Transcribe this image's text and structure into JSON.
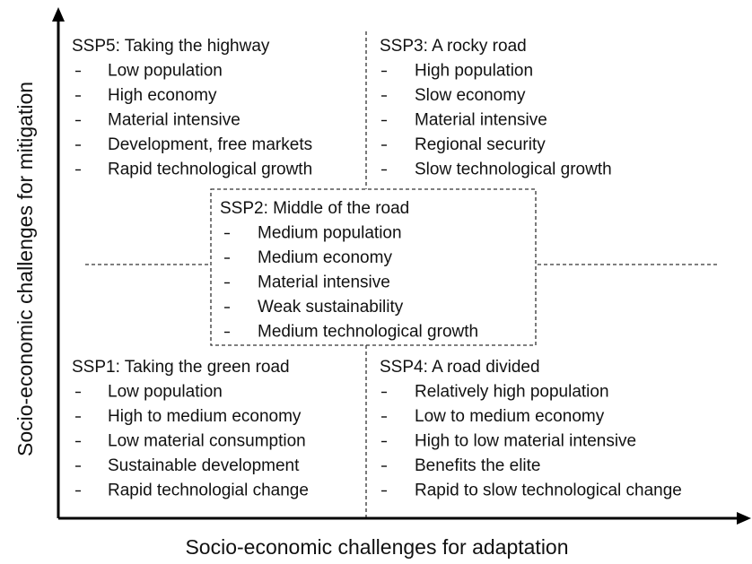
{
  "y_axis_label": "Socio-economic  challenges  for  mitigation",
  "x_axis_label": "Socio-economic  challenges  for  adaptation",
  "quadrants": [
    {
      "title": "SSP5: Taking the highway",
      "items": [
        "Low population",
        "High economy",
        "Material intensive",
        "Development, free markets",
        "Rapid technological growth"
      ]
    },
    {
      "title": "SSP3: A rocky road",
      "items": [
        "High population",
        "Slow economy",
        "Material intensive",
        "Regional security",
        "Slow technological growth"
      ]
    },
    {
      "title": "SSP2: Middle of the road",
      "items": [
        "Medium population",
        "Medium economy",
        "Material intensive",
        "Weak sustainability",
        "Medium technological growth"
      ]
    },
    {
      "title": "SSP1: Taking the green road",
      "items": [
        "Low population",
        "High to medium economy",
        "Low material consumption",
        "Sustainable development",
        "Rapid technologial change"
      ]
    },
    {
      "title": "SSP4: A road divided",
      "items": [
        "Relatively high population",
        "Low to medium economy",
        "High to low material intensive",
        "Benefits the elite",
        "Rapid to slow technological change"
      ]
    }
  ]
}
